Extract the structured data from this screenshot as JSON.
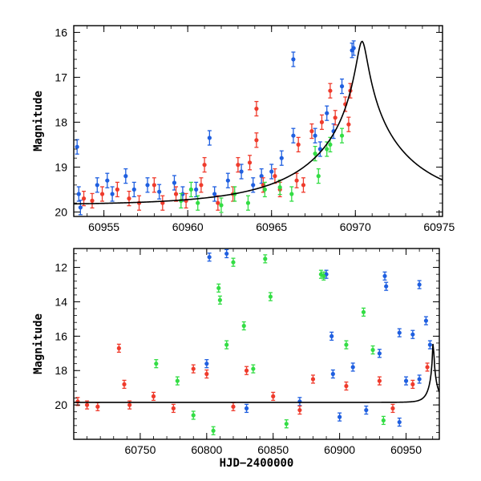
{
  "colors": {
    "blue": "#1f5fe0",
    "red": "#ef3b2c",
    "green": "#33dd44",
    "model": "#000000",
    "frame": "#000000"
  },
  "chart_data": [
    {
      "type": "scatter",
      "title": "",
      "xlabel": "",
      "ylabel": "Magnitude",
      "xlim": [
        60953.2,
        60975.2
      ],
      "ylim": [
        20.1,
        15.85
      ],
      "y_inverted": true,
      "xticks": [
        60955,
        60960,
        60965,
        60970,
        60975
      ],
      "xtick_labels": [
        "60955",
        "60960",
        "60965",
        "60970",
        "60975"
      ],
      "yticks": [
        16,
        17,
        18,
        19,
        20
      ],
      "ytick_labels": [
        "16",
        "17",
        "18",
        "19",
        "20"
      ],
      "legend": "none",
      "model_curve": {
        "name": "microlensing model",
        "peak_time": 60970.4,
        "peak_mag": 16.2,
        "baseline_mag": 19.85,
        "tE": 6.5
      },
      "series": [
        {
          "name": "blue",
          "points": [
            [
              60953.4,
              18.55
            ],
            [
              60953.5,
              19.6
            ],
            [
              60953.6,
              19.9
            ],
            [
              60954.6,
              19.4
            ],
            [
              60955.2,
              19.3
            ],
            [
              60955.5,
              19.6
            ],
            [
              60956.3,
              19.2
            ],
            [
              60956.8,
              19.5
            ],
            [
              60957.6,
              19.4
            ],
            [
              60958.3,
              19.55
            ],
            [
              60959.2,
              19.35
            ],
            [
              60959.7,
              19.6
            ],
            [
              60960.5,
              19.5
            ],
            [
              60961.3,
              18.35
            ],
            [
              60961.6,
              19.6
            ],
            [
              60962.4,
              19.3
            ],
            [
              60963.2,
              19.1
            ],
            [
              60963.9,
              19.4
            ],
            [
              60964.4,
              19.2
            ],
            [
              60965.0,
              19.1
            ],
            [
              60965.6,
              18.8
            ],
            [
              60966.3,
              18.3
            ],
            [
              60966.3,
              16.6
            ],
            [
              60967.6,
              18.3
            ],
            [
              60967.9,
              18.6
            ],
            [
              60968.3,
              17.8
            ],
            [
              60968.7,
              18.2
            ],
            [
              60969.2,
              17.2
            ],
            [
              60969.8,
              16.4
            ],
            [
              60969.9,
              16.35
            ]
          ]
        },
        {
          "name": "red",
          "points": [
            [
              60953.8,
              19.7
            ],
            [
              60954.3,
              19.75
            ],
            [
              60954.9,
              19.6
            ],
            [
              60955.8,
              19.5
            ],
            [
              60956.5,
              19.7
            ],
            [
              60957.1,
              19.8
            ],
            [
              60958.0,
              19.4
            ],
            [
              60958.5,
              19.8
            ],
            [
              60959.3,
              19.6
            ],
            [
              60959.9,
              19.75
            ],
            [
              60960.8,
              19.4
            ],
            [
              60961.0,
              18.95
            ],
            [
              60961.8,
              19.8
            ],
            [
              60962.7,
              19.6
            ],
            [
              60963.0,
              18.95
            ],
            [
              60963.7,
              18.9
            ],
            [
              60964.1,
              17.7
            ],
            [
              60964.1,
              18.4
            ],
            [
              60964.5,
              19.4
            ],
            [
              60965.2,
              19.2
            ],
            [
              60965.5,
              19.5
            ],
            [
              60966.5,
              19.3
            ],
            [
              60966.6,
              18.5
            ],
            [
              60966.9,
              19.4
            ],
            [
              60967.4,
              18.2
            ],
            [
              60968.0,
              18.0
            ],
            [
              60968.5,
              17.3
            ],
            [
              60968.8,
              17.9
            ],
            [
              60969.4,
              17.6
            ],
            [
              60969.6,
              18.05
            ],
            [
              60969.7,
              17.3
            ]
          ]
        },
        {
          "name": "green",
          "points": [
            [
              60959.6,
              19.75
            ],
            [
              60960.2,
              19.5
            ],
            [
              60960.6,
              19.8
            ],
            [
              60962.0,
              19.85
            ],
            [
              60962.8,
              19.6
            ],
            [
              60963.6,
              19.8
            ],
            [
              60964.6,
              19.5
            ],
            [
              60965.5,
              19.45
            ],
            [
              60966.2,
              19.6
            ],
            [
              60967.6,
              18.7
            ],
            [
              60967.8,
              19.2
            ],
            [
              60968.3,
              18.6
            ],
            [
              60968.5,
              18.5
            ],
            [
              60969.2,
              18.3
            ]
          ]
        }
      ]
    },
    {
      "type": "scatter",
      "title": "",
      "xlabel": "HJD−2400000",
      "ylabel": "Magnitude",
      "xlim": [
        60700,
        60975
      ],
      "ylim": [
        22.0,
        10.9
      ],
      "y_inverted": true,
      "xticks": [
        60750,
        60800,
        60850,
        60900,
        60950
      ],
      "xtick_labels": [
        "60750",
        "60800",
        "60850",
        "60900",
        "60950"
      ],
      "yticks": [
        12,
        14,
        16,
        18,
        20
      ],
      "ytick_labels": [
        "12",
        "14",
        "16",
        "18",
        "20"
      ],
      "legend": "none",
      "model_curve": {
        "name": "microlensing model",
        "peak_time": 60970.4,
        "peak_mag": 16.2,
        "baseline_mag": 19.85,
        "tE": 6.5
      },
      "series": [
        {
          "name": "blue",
          "points": [
            [
              60802,
              11.4
            ],
            [
              60815,
              11.2
            ],
            [
              60890,
              12.4
            ],
            [
              60934,
              12.5
            ],
            [
              60935,
              13.1
            ],
            [
              60960,
              13.0
            ],
            [
              60965,
              15.1
            ],
            [
              60968,
              16.5
            ],
            [
              60945,
              15.8
            ],
            [
              60955,
              15.9
            ],
            [
              60930,
              17.0
            ],
            [
              60894,
              16.0
            ],
            [
              60895,
              18.2
            ],
            [
              60910,
              17.8
            ],
            [
              60950,
              18.6
            ],
            [
              60960,
              18.5
            ],
            [
              60800,
              17.6
            ],
            [
              60830,
              20.2
            ],
            [
              60870,
              19.8
            ],
            [
              60900,
              20.7
            ],
            [
              60920,
              20.3
            ],
            [
              60945,
              21.0
            ]
          ]
        },
        {
          "name": "red",
          "points": [
            [
              60703,
              19.8
            ],
            [
              60710,
              20.0
            ],
            [
              60718,
              20.1
            ],
            [
              60734,
              16.7
            ],
            [
              60738,
              18.8
            ],
            [
              60760,
              19.5
            ],
            [
              60790,
              17.9
            ],
            [
              60800,
              18.2
            ],
            [
              60830,
              18.0
            ],
            [
              60850,
              19.5
            ],
            [
              60880,
              18.5
            ],
            [
              60905,
              18.9
            ],
            [
              60930,
              18.6
            ],
            [
              60955,
              18.8
            ],
            [
              60966,
              17.8
            ],
            [
              60742,
              20.0
            ],
            [
              60775,
              20.2
            ],
            [
              60820,
              20.1
            ],
            [
              60870,
              20.3
            ],
            [
              60940,
              20.2
            ]
          ]
        },
        {
          "name": "green",
          "points": [
            [
              60809,
              13.2
            ],
            [
              60810,
              13.9
            ],
            [
              60820,
              11.7
            ],
            [
              60828,
              15.4
            ],
            [
              60844,
              11.5
            ],
            [
              60848,
              13.7
            ],
            [
              60886,
              12.4
            ],
            [
              60888,
              12.5
            ],
            [
              60918,
              14.6
            ],
            [
              60905,
              16.5
            ],
            [
              60815,
              16.5
            ],
            [
              60762,
              17.6
            ],
            [
              60778,
              18.6
            ],
            [
              60835,
              17.9
            ],
            [
              60925,
              16.8
            ],
            [
              60790,
              20.6
            ],
            [
              60860,
              21.1
            ],
            [
              60933,
              20.9
            ],
            [
              60805,
              21.5
            ]
          ]
        }
      ]
    }
  ]
}
